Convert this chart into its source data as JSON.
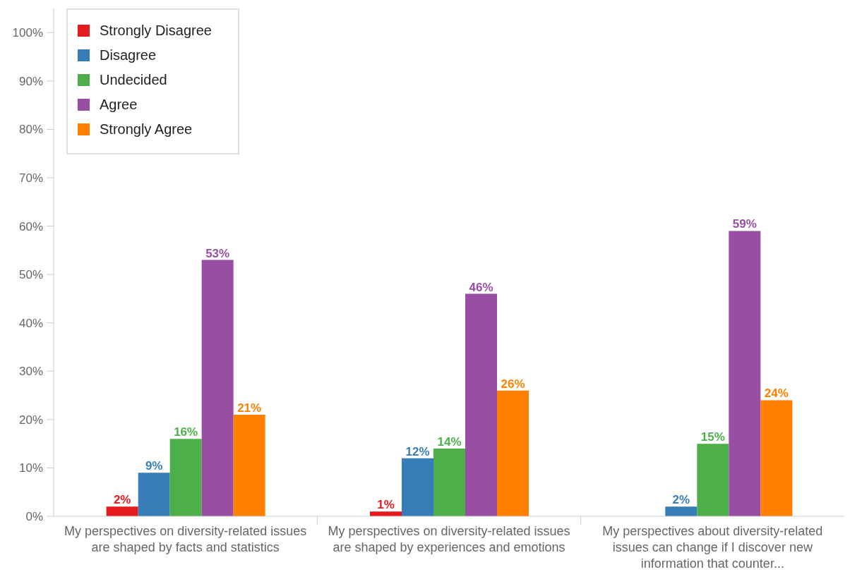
{
  "chart_data": {
    "type": "bar",
    "categories": [
      "My perspectives on diversity-related issues are shaped by facts and statistics",
      "My perspectives on diversity-related issues are shaped by experiences and emotions",
      "My perspectives about diversity-related issues can change if I discover new information that counter..."
    ],
    "series": [
      {
        "name": "Strongly Disagree",
        "color": "#e41a1c",
        "values": [
          2,
          1,
          null
        ],
        "value_labels": [
          "2%",
          "1%",
          null
        ]
      },
      {
        "name": "Disagree",
        "color": "#377eb8",
        "values": [
          9,
          12,
          2
        ],
        "value_labels": [
          "9%",
          "12%",
          "2%"
        ]
      },
      {
        "name": "Undecided",
        "color": "#4daf4a",
        "values": [
          16,
          14,
          15
        ],
        "value_labels": [
          "16%",
          "14%",
          "15%"
        ]
      },
      {
        "name": "Agree",
        "color": "#984ea3",
        "values": [
          53,
          46,
          59
        ],
        "value_labels": [
          "53%",
          "46%",
          "59%"
        ]
      },
      {
        "name": "Strongly Agree",
        "color": "#ff7f00",
        "values": [
          21,
          26,
          24
        ],
        "value_labels": [
          "21%",
          "26%",
          "24%"
        ]
      }
    ],
    "ylim": [
      0,
      105
    ],
    "yticks": [
      {
        "value": 0,
        "label": "0%"
      },
      {
        "value": 10,
        "label": "10%"
      },
      {
        "value": 20,
        "label": "20%"
      },
      {
        "value": 30,
        "label": "30%"
      },
      {
        "value": 40,
        "label": "40%"
      },
      {
        "value": 50,
        "label": "50%"
      },
      {
        "value": 60,
        "label": "60%"
      },
      {
        "value": 70,
        "label": "70%"
      },
      {
        "value": 80,
        "label": "80%"
      },
      {
        "value": 90,
        "label": "90%"
      },
      {
        "value": 100,
        "label": "100%"
      }
    ],
    "legend": "top left"
  }
}
